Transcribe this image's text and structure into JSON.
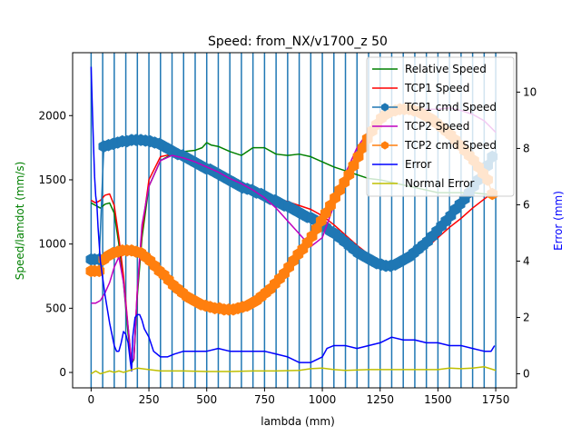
{
  "chart_data": {
    "type": "line",
    "title": "Speed: from_NX/v1700_z    50",
    "xlabel": "lambda (mm)",
    "ylabel_left": "Speed/lamdot (mm/s)",
    "ylabel_right": "Error (mm)",
    "ylabel_left_color": "#008000",
    "ylabel_right_color": "#0000ff",
    "xlim": [
      -80,
      1840
    ],
    "ylim_left": [
      -120,
      2490
    ],
    "ylim_right": [
      -0.5,
      11.4
    ],
    "x_ticks": [
      0,
      250,
      500,
      750,
      1000,
      1250,
      1500,
      1750
    ],
    "x_tick_labels": [
      "0",
      "250",
      "500",
      "750",
      "1000",
      "1250",
      "1500",
      "1750"
    ],
    "left_ticks": [
      0,
      500,
      1000,
      1500,
      2000
    ],
    "left_tick_labels": [
      "0",
      "500",
      "1000",
      "1500",
      "2000"
    ],
    "right_ticks": [
      0,
      2,
      4,
      6,
      8,
      10
    ],
    "right_tick_labels": [
      "0",
      "2",
      "4",
      "6",
      "8",
      "10"
    ],
    "vlines": [
      0,
      50,
      100,
      150,
      200,
      250,
      300,
      350,
      400,
      450,
      500,
      550,
      600,
      650,
      700,
      750,
      800,
      850,
      900,
      950,
      1000,
      1050,
      1100,
      1150,
      1200,
      1250,
      1300,
      1350,
      1400,
      1450,
      1500,
      1550,
      1600,
      1650,
      1700,
      1750
    ],
    "vline_color": "#1f77b4",
    "legend_position": "upper right",
    "series": [
      {
        "name": "Relative Speed",
        "axis": "left",
        "color": "#008000",
        "marker": "none",
        "x": [
          0,
          20,
          40,
          60,
          80,
          100,
          120,
          140,
          160,
          175,
          185,
          200,
          220,
          250,
          300,
          350,
          400,
          450,
          480,
          500,
          520,
          550,
          600,
          650,
          700,
          750,
          800,
          850,
          900,
          950,
          1000,
          1050,
          1100,
          1150,
          1200,
          1250,
          1300,
          1350,
          1400,
          1450,
          1500,
          1550,
          1600,
          1650,
          1700,
          1750
        ],
        "y": [
          1320,
          1300,
          1280,
          1310,
          1320,
          1240,
          1000,
          700,
          300,
          70,
          100,
          600,
          1050,
          1450,
          1650,
          1700,
          1720,
          1730,
          1750,
          1790,
          1770,
          1760,
          1720,
          1690,
          1750,
          1750,
          1700,
          1690,
          1700,
          1680,
          1640,
          1600,
          1570,
          1540,
          1510,
          1500,
          1480,
          1460,
          1440,
          1420,
          1400,
          1400,
          1400,
          1400,
          1390,
          1380
        ]
      },
      {
        "name": "TCP1 Speed",
        "axis": "left",
        "color": "#ff0000",
        "marker": "none",
        "x": [
          0,
          20,
          40,
          60,
          80,
          100,
          120,
          140,
          160,
          175,
          185,
          200,
          220,
          250,
          300,
          350,
          400,
          450,
          500,
          550,
          600,
          650,
          700,
          750,
          800,
          850,
          900,
          950,
          1000,
          1050,
          1100,
          1150,
          1200,
          1250,
          1300,
          1350,
          1400,
          1450,
          1500,
          1550,
          1600,
          1650,
          1700,
          1750
        ],
        "y": [
          1340,
          1320,
          1340,
          1380,
          1390,
          1300,
          1050,
          750,
          350,
          80,
          110,
          650,
          1100,
          1500,
          1680,
          1700,
          1680,
          1640,
          1600,
          1560,
          1510,
          1460,
          1420,
          1390,
          1360,
          1330,
          1300,
          1270,
          1220,
          1150,
          1070,
          990,
          920,
          860,
          830,
          850,
          900,
          970,
          1050,
          1130,
          1200,
          1280,
          1350,
          1420
        ]
      },
      {
        "name": "TCP1 cmd Speed",
        "axis": "left",
        "color": "#1f77b4",
        "marker": "hexagon",
        "x": [
          0,
          15,
          35,
          55,
          75,
          95,
          115,
          135,
          155,
          175,
          195,
          215,
          235,
          255,
          275,
          295,
          315,
          335,
          355,
          375,
          395,
          415,
          435,
          455,
          475,
          495,
          515,
          535,
          555,
          575,
          595,
          615,
          635,
          655,
          675,
          695,
          715,
          735,
          755,
          775,
          795,
          815,
          835,
          855,
          875,
          895,
          915,
          935,
          955,
          975,
          995,
          1015,
          1035,
          1055,
          1075,
          1095,
          1115,
          1135,
          1155,
          1175,
          1195,
          1215,
          1235,
          1255,
          1275,
          1295,
          1315,
          1335,
          1355,
          1375,
          1395,
          1415,
          1435,
          1455,
          1475,
          1495,
          1515,
          1535,
          1555,
          1575,
          1595,
          1615,
          1635,
          1655,
          1675,
          1695,
          1715,
          1735
        ],
        "y": [
          880,
          880,
          880,
          1760,
          1770,
          1780,
          1790,
          1800,
          1800,
          1810,
          1810,
          1810,
          1805,
          1800,
          1790,
          1780,
          1760,
          1740,
          1720,
          1700,
          1690,
          1670,
          1650,
          1630,
          1610,
          1590,
          1580,
          1560,
          1540,
          1520,
          1500,
          1480,
          1460,
          1440,
          1430,
          1420,
          1400,
          1390,
          1370,
          1350,
          1340,
          1320,
          1300,
          1290,
          1270,
          1250,
          1230,
          1210,
          1200,
          1180,
          1160,
          1130,
          1100,
          1080,
          1050,
          1020,
          990,
          960,
          930,
          910,
          890,
          870,
          850,
          840,
          830,
          830,
          840,
          860,
          880,
          900,
          930,
          960,
          990,
          1020,
          1060,
          1100,
          1140,
          1180,
          1220,
          1270,
          1310,
          1350,
          1400,
          1450,
          1500,
          1560,
          1610,
          1680
        ]
      },
      {
        "name": "TCP2 Speed",
        "axis": "left",
        "color": "#bf00bf",
        "marker": "none",
        "x": [
          0,
          20,
          40,
          60,
          80,
          100,
          120,
          140,
          160,
          175,
          185,
          200,
          220,
          250,
          300,
          350,
          400,
          450,
          500,
          550,
          600,
          650,
          700,
          750,
          800,
          850,
          900,
          950,
          1000,
          1050,
          1100,
          1150,
          1200,
          1250,
          1300,
          1350,
          1400,
          1450,
          1500,
          1550,
          1600,
          1650,
          1700,
          1750
        ],
        "y": [
          540,
          540,
          560,
          620,
          700,
          820,
          900,
          700,
          350,
          80,
          110,
          650,
          1150,
          1450,
          1650,
          1690,
          1670,
          1640,
          1600,
          1560,
          1510,
          1470,
          1420,
          1360,
          1280,
          1180,
          1080,
          980,
          1050,
          1300,
          1550,
          1750,
          1880,
          1960,
          2000,
          2030,
          2040,
          2050,
          2050,
          2060,
          2040,
          2010,
          1960,
          1870
        ]
      },
      {
        "name": "TCP2 cmd Speed",
        "axis": "left",
        "color": "#ff7f0e",
        "marker": "hexagon",
        "x": [
          0,
          15,
          35,
          55,
          75,
          95,
          115,
          135,
          155,
          175,
          195,
          215,
          235,
          255,
          275,
          295,
          315,
          335,
          355,
          375,
          395,
          415,
          435,
          455,
          475,
          495,
          515,
          535,
          555,
          575,
          595,
          615,
          635,
          655,
          675,
          695,
          715,
          735,
          755,
          775,
          795,
          815,
          835,
          855,
          875,
          895,
          915,
          935,
          955,
          975,
          995,
          1015,
          1035,
          1055,
          1075,
          1095,
          1115,
          1135,
          1155,
          1175,
          1195,
          1215,
          1235,
          1255,
          1275,
          1295,
          1315,
          1335,
          1355,
          1375,
          1395,
          1415,
          1435,
          1455,
          1475,
          1495,
          1515,
          1535,
          1555,
          1575,
          1595,
          1615,
          1635,
          1655,
          1675,
          1695,
          1715,
          1735
        ],
        "y": [
          790,
          790,
          790,
          880,
          910,
          930,
          940,
          950,
          950,
          950,
          940,
          930,
          900,
          870,
          830,
          790,
          760,
          720,
          680,
          650,
          620,
          590,
          570,
          550,
          530,
          520,
          510,
          500,
          500,
          490,
          490,
          490,
          500,
          510,
          520,
          540,
          560,
          590,
          620,
          650,
          690,
          730,
          770,
          820,
          870,
          920,
          960,
          1010,
          1060,
          1120,
          1180,
          1240,
          1300,
          1360,
          1420,
          1480,
          1540,
          1610,
          1680,
          1750,
          1820,
          1880,
          1930,
          1980,
          2010,
          2030,
          2040,
          2050,
          2050,
          2050,
          2040,
          2030,
          2010,
          1990,
          1970,
          1940,
          1910,
          1880,
          1850,
          1810,
          1770,
          1730,
          1690,
          1650,
          1600,
          1550,
          1500,
          1390
        ]
      },
      {
        "name": "Error",
        "axis": "right",
        "color": "#0000ff",
        "marker": "none",
        "x": [
          0,
          5,
          10,
          15,
          20,
          25,
          30,
          40,
          50,
          60,
          70,
          80,
          90,
          100,
          110,
          120,
          130,
          140,
          150,
          160,
          170,
          175,
          180,
          190,
          200,
          210,
          220,
          230,
          250,
          270,
          300,
          330,
          360,
          400,
          450,
          500,
          550,
          600,
          650,
          700,
          750,
          800,
          850,
          900,
          950,
          1000,
          1020,
          1050,
          1100,
          1150,
          1200,
          1250,
          1300,
          1350,
          1400,
          1450,
          1500,
          1550,
          1600,
          1650,
          1700,
          1730,
          1745
        ],
        "y": [
          10.9,
          9.5,
          8.2,
          7.0,
          6.3,
          6.0,
          5.2,
          4.0,
          3.4,
          2.8,
          2.3,
          1.8,
          1.4,
          1.0,
          0.8,
          0.8,
          1.1,
          1.5,
          1.4,
          1.1,
          0.4,
          0.1,
          1.3,
          2.0,
          2.1,
          2.1,
          1.9,
          1.6,
          1.3,
          0.8,
          0.6,
          0.6,
          0.7,
          0.8,
          0.8,
          0.8,
          0.9,
          0.8,
          0.8,
          0.8,
          0.8,
          0.7,
          0.6,
          0.4,
          0.4,
          0.6,
          0.9,
          1.0,
          1.0,
          0.9,
          1.0,
          1.1,
          1.3,
          1.2,
          1.2,
          1.1,
          1.1,
          1.0,
          1.0,
          0.9,
          0.8,
          0.8,
          1.0
        ]
      },
      {
        "name": "Normal Error",
        "axis": "right",
        "color": "#bfbf00",
        "marker": "none",
        "x": [
          0,
          20,
          40,
          60,
          80,
          100,
          120,
          140,
          160,
          180,
          200,
          250,
          300,
          400,
          500,
          600,
          700,
          800,
          900,
          950,
          1000,
          1050,
          1100,
          1200,
          1300,
          1400,
          1500,
          1550,
          1600,
          1650,
          1700,
          1750
        ],
        "y": [
          0.0,
          0.1,
          0.0,
          0.05,
          0.1,
          0.05,
          0.1,
          0.05,
          0.1,
          0.15,
          0.2,
          0.15,
          0.1,
          0.1,
          0.08,
          0.08,
          0.1,
          0.1,
          0.12,
          0.18,
          0.2,
          0.15,
          0.12,
          0.15,
          0.15,
          0.15,
          0.15,
          0.2,
          0.18,
          0.2,
          0.25,
          0.12
        ]
      }
    ]
  }
}
